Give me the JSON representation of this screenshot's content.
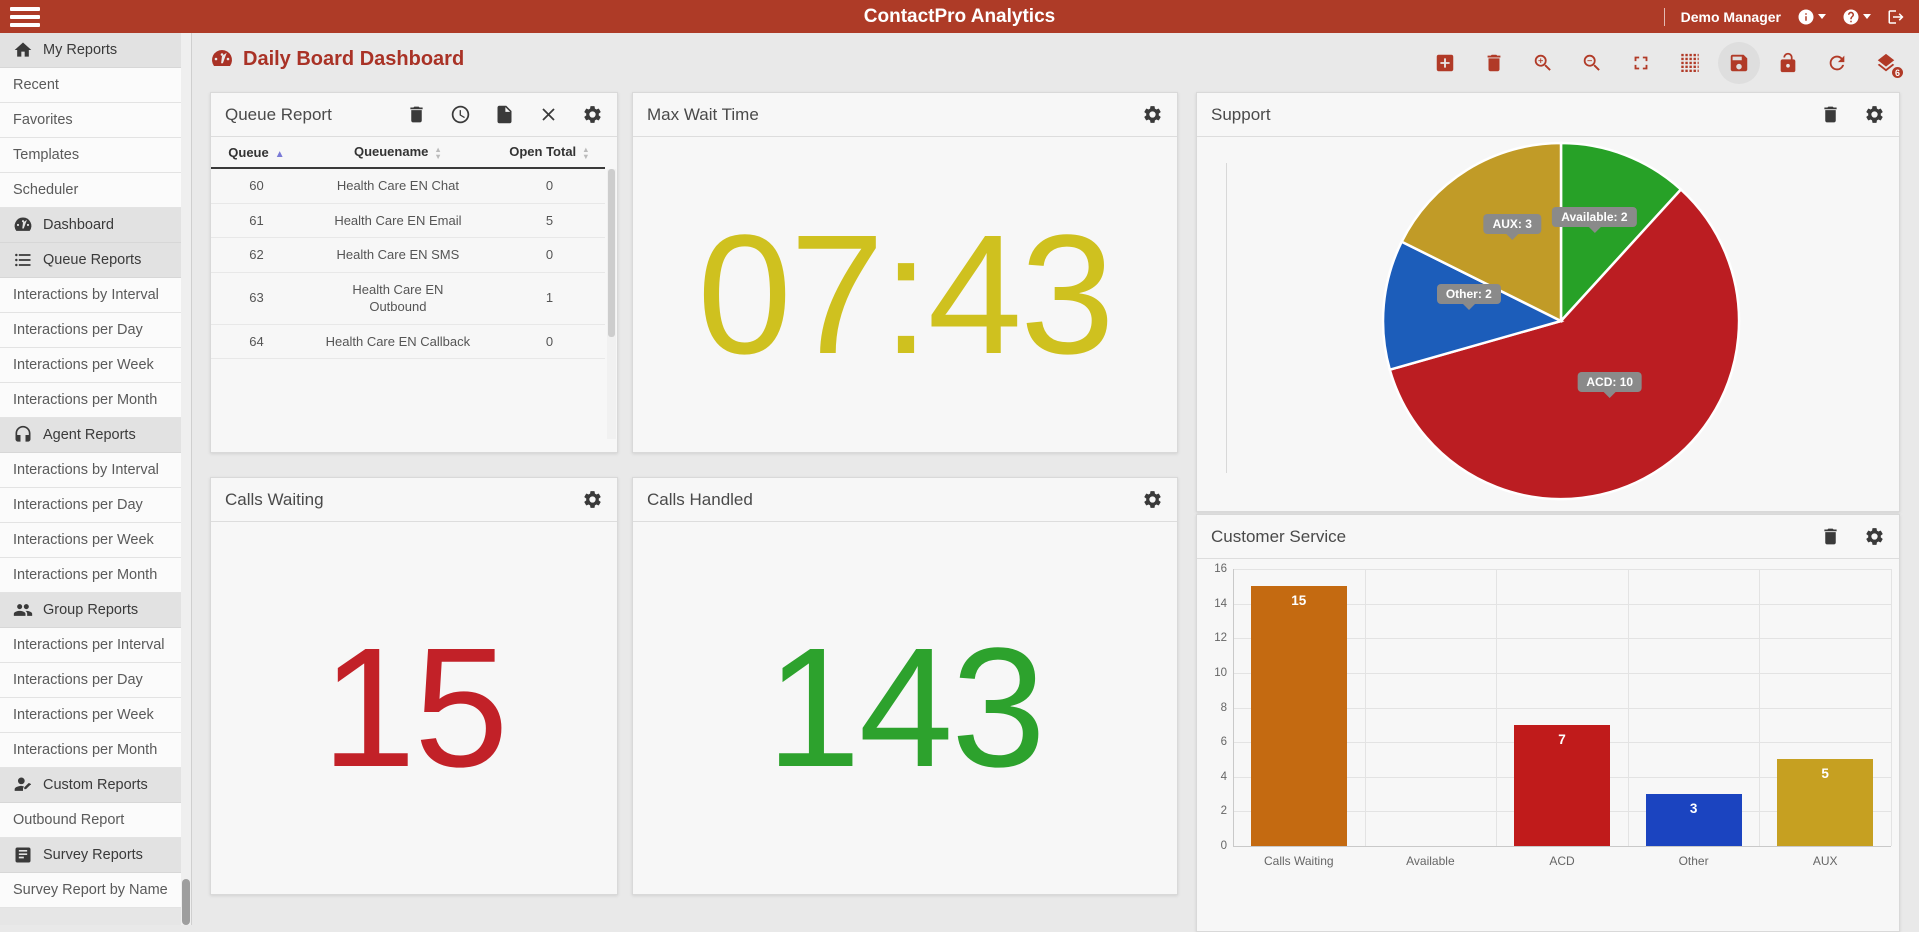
{
  "topbar": {
    "title": "ContactPro Analytics",
    "user": "Demo Manager"
  },
  "page": {
    "title": "Daily Board Dashboard"
  },
  "toolbar": {
    "buttons": [
      {
        "name": "add-widget",
        "icon": "addbox"
      },
      {
        "name": "delete-dashboard",
        "icon": "trash"
      },
      {
        "name": "zoom-in",
        "icon": "zoomin"
      },
      {
        "name": "zoom-out",
        "icon": "zoomout"
      },
      {
        "name": "fullscreen",
        "icon": "fullscreen"
      },
      {
        "name": "grid-layout",
        "icon": "grid"
      },
      {
        "name": "save-dashboard",
        "icon": "save",
        "active": true
      },
      {
        "name": "lock-dashboard",
        "icon": "lock"
      },
      {
        "name": "refresh-dashboard",
        "icon": "refresh"
      },
      {
        "name": "dashboards-list",
        "icon": "layers",
        "badge": "6"
      }
    ]
  },
  "sidebar": {
    "items": [
      {
        "label": "My Reports",
        "type": "header",
        "icon": "home"
      },
      {
        "label": "Recent",
        "type": "item"
      },
      {
        "label": "Favorites",
        "type": "item"
      },
      {
        "label": "Templates",
        "type": "item"
      },
      {
        "label": "Scheduler",
        "type": "item"
      },
      {
        "label": "Dashboard",
        "type": "header",
        "icon": "gauge"
      },
      {
        "label": "Queue Reports",
        "type": "header",
        "icon": "list"
      },
      {
        "label": "Interactions by Interval",
        "type": "item"
      },
      {
        "label": "Interactions per Day",
        "type": "item"
      },
      {
        "label": "Interactions per Week",
        "type": "item"
      },
      {
        "label": "Interactions per Month",
        "type": "item"
      },
      {
        "label": "Agent Reports",
        "type": "header",
        "icon": "headset"
      },
      {
        "label": "Interactions by Interval",
        "type": "item"
      },
      {
        "label": "Interactions per Day",
        "type": "item"
      },
      {
        "label": "Interactions per Week",
        "type": "item"
      },
      {
        "label": "Interactions per Month",
        "type": "item"
      },
      {
        "label": "Group Reports",
        "type": "header",
        "icon": "group"
      },
      {
        "label": "Interactions per Interval",
        "type": "item"
      },
      {
        "label": "Interactions per Day",
        "type": "item"
      },
      {
        "label": "Interactions per Week",
        "type": "item"
      },
      {
        "label": "Interactions per Month",
        "type": "item"
      },
      {
        "label": "Custom Reports",
        "type": "header",
        "icon": "person"
      },
      {
        "label": "Outbound Report",
        "type": "item"
      },
      {
        "label": "Survey Reports",
        "type": "header",
        "icon": "doc"
      },
      {
        "label": "Survey Report by Name",
        "type": "item"
      }
    ]
  },
  "widgets": {
    "queue_report": {
      "title": "Queue Report",
      "columns": [
        {
          "label": "Queue",
          "sort": "asc"
        },
        {
          "label": "Queuename",
          "sort": "none"
        },
        {
          "label": "Open Total",
          "sort": "none"
        }
      ],
      "rows": [
        {
          "queue": "60",
          "name": "Health Care EN Chat",
          "total": "0"
        },
        {
          "queue": "61",
          "name": "Health Care EN Email",
          "total": "5"
        },
        {
          "queue": "62",
          "name": "Health Care EN SMS",
          "total": "0"
        },
        {
          "queue": "63",
          "name": "Health Care EN Outbound",
          "total": "1"
        },
        {
          "queue": "64",
          "name": "Health Care EN Callback",
          "total": "0"
        }
      ]
    },
    "max_wait": {
      "title": "Max Wait Time",
      "value": "07:43",
      "color": "#cfc11f"
    },
    "support": {
      "title": "Support"
    },
    "calls_waiting": {
      "title": "Calls Waiting",
      "value": "15",
      "color": "#c22128"
    },
    "calls_handled": {
      "title": "Calls Handled",
      "value": "143",
      "color": "#2da22d"
    },
    "customer_service": {
      "title": "Customer Service"
    }
  },
  "chart_data": [
    {
      "type": "pie",
      "title": "Support",
      "labels": [
        "Available",
        "ACD",
        "Other",
        "AUX"
      ],
      "values": [
        2,
        10,
        2,
        3
      ],
      "colors": [
        "#27a127",
        "#bb1d22",
        "#1c5dba",
        "#c19b27"
      ],
      "label_format": "name: value",
      "legend_position": "none",
      "tooltips": [
        "Available: 2",
        "ACD: 10",
        "Other: 2",
        "AUX: 3"
      ]
    },
    {
      "type": "bar",
      "title": "Customer Service",
      "categories": [
        "Calls Waiting",
        "Available",
        "ACD",
        "Other",
        "AUX"
      ],
      "values": [
        15,
        0,
        7,
        3,
        5
      ],
      "colors": [
        "#c46a11",
        "#c46a11",
        "#c01b1b",
        "#1b44c0",
        "#c6a021"
      ],
      "ylim": [
        0,
        16
      ],
      "ytick_step": 2,
      "grid": true,
      "value_labels": [
        "15",
        "",
        "7",
        "3",
        "5"
      ],
      "xlabel": "",
      "ylabel": ""
    }
  ]
}
